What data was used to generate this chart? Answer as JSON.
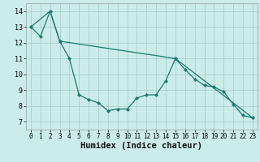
{
  "xlabel": "Humidex (Indice chaleur)",
  "ylabel": "",
  "bg_color": "#ccecea",
  "grid_color": "#aad4d2",
  "line_color": "#1a7a6e",
  "xlim": [
    -0.5,
    23.5
  ],
  "ylim": [
    6.5,
    14.5
  ],
  "xticks": [
    0,
    1,
    2,
    3,
    4,
    5,
    6,
    7,
    8,
    9,
    10,
    11,
    12,
    13,
    14,
    15,
    16,
    17,
    18,
    19,
    20,
    21,
    22,
    23
  ],
  "yticks": [
    7,
    8,
    9,
    10,
    11,
    12,
    13,
    14
  ],
  "line1_x": [
    0,
    1,
    2,
    3,
    4,
    5,
    6,
    7,
    8,
    9,
    10,
    11,
    12,
    13,
    14,
    15,
    16,
    17,
    18,
    19,
    20,
    21,
    22,
    23
  ],
  "line1_y": [
    13.0,
    12.4,
    14.0,
    12.1,
    11.0,
    8.7,
    8.4,
    8.2,
    7.7,
    7.8,
    7.8,
    8.5,
    8.7,
    8.7,
    9.6,
    11.0,
    10.3,
    9.7,
    9.3,
    9.2,
    8.9,
    8.1,
    7.4,
    7.25
  ],
  "line2_x": [
    0,
    2,
    3,
    15,
    23
  ],
  "line2_y": [
    13.0,
    14.0,
    12.1,
    11.0,
    7.25
  ]
}
